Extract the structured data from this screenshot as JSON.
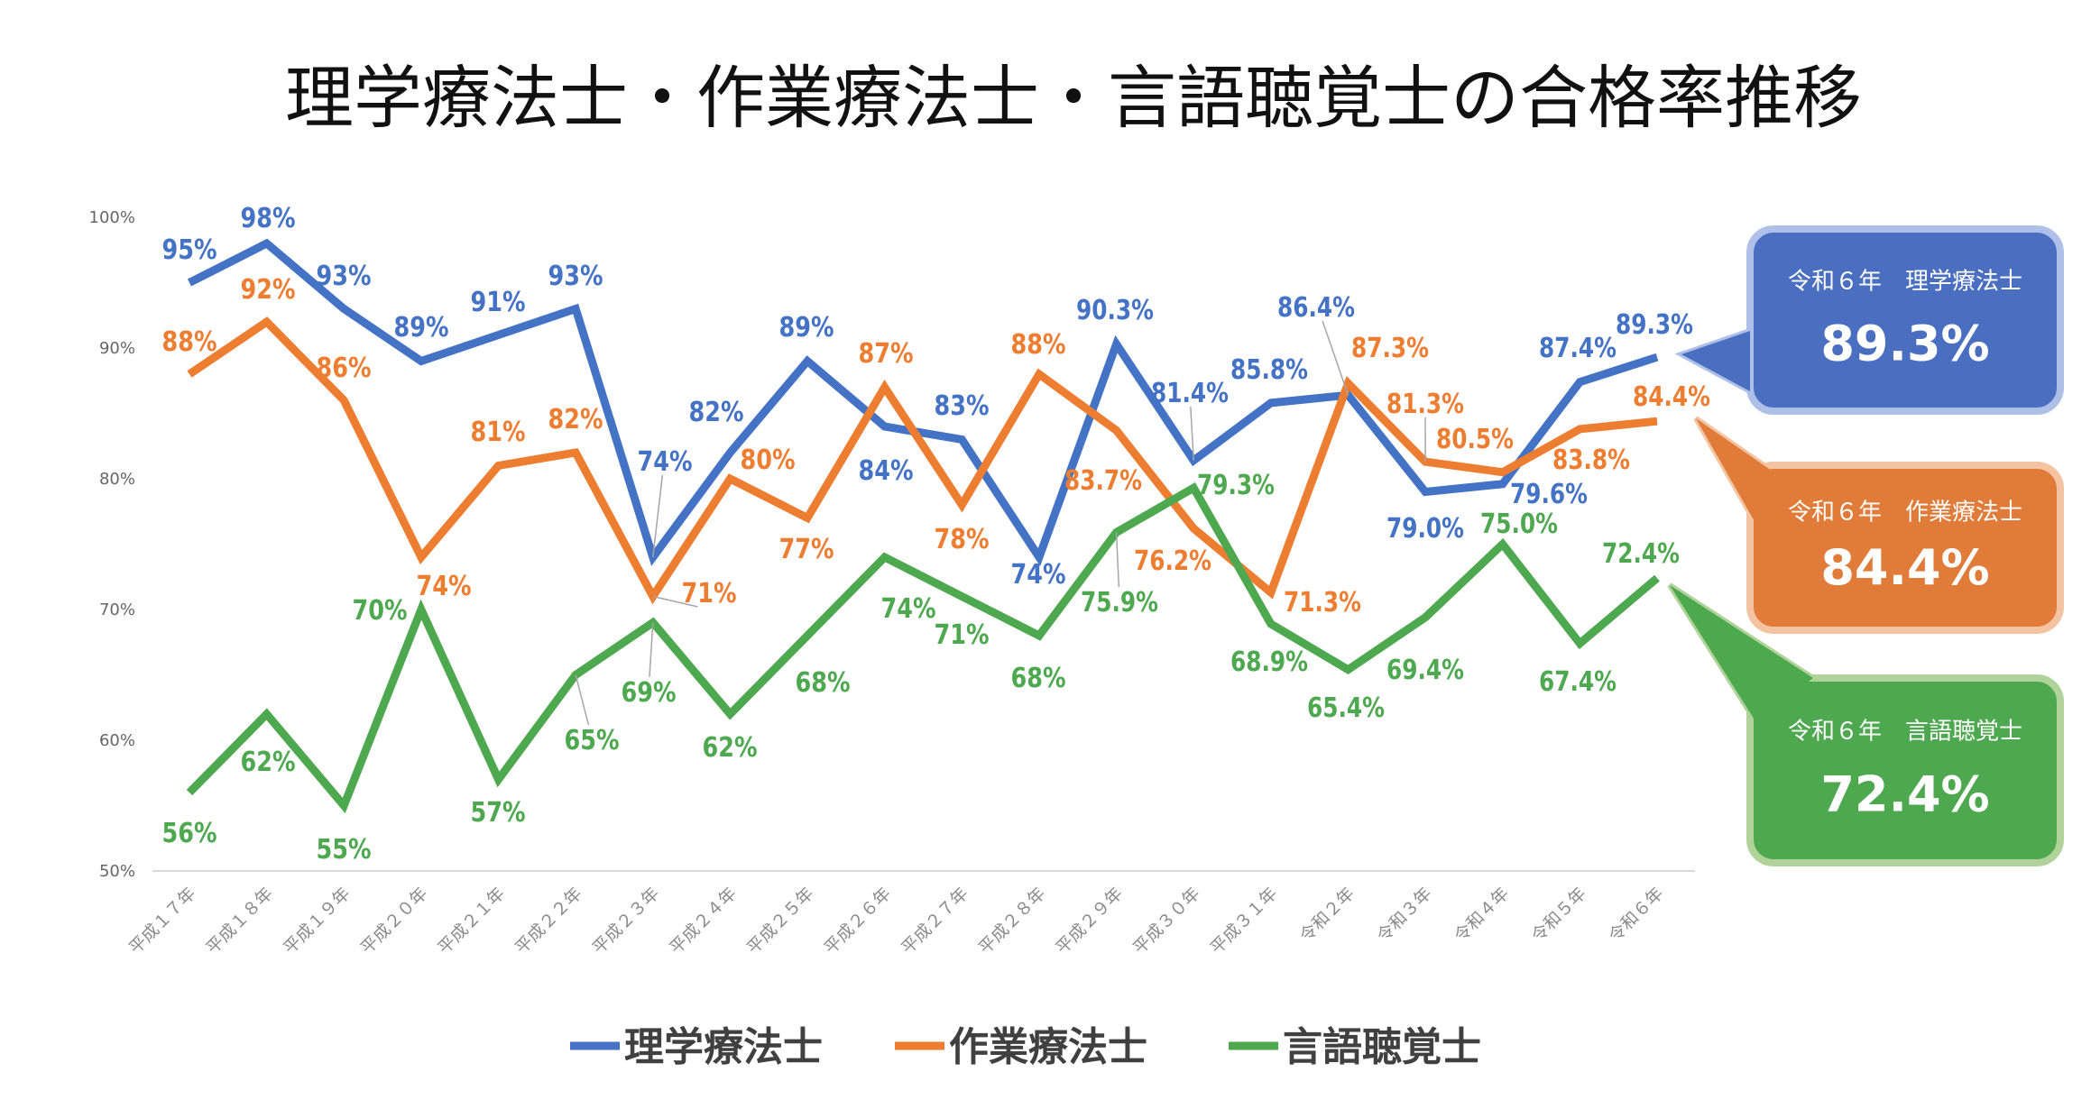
{
  "chart_data": {
    "type": "line",
    "title": "理学療法士・作業療法士・言語聴覚士の合格率推移",
    "xlabel": "",
    "ylabel": "",
    "ylim": [
      50,
      100
    ],
    "yticks": [
      "50%",
      "60%",
      "70%",
      "80%",
      "90%",
      "100%"
    ],
    "ytick_values": [
      50,
      60,
      70,
      80,
      90,
      100
    ],
    "grid": false,
    "legend_position": "bottom",
    "categories": [
      "平成１７年",
      "平成１８年",
      "平成１９年",
      "平成２０年",
      "平成２１年",
      "平成２２年",
      "平成２３年",
      "平成２４年",
      "平成２５年",
      "平成２６年",
      "平成２７年",
      "平成２８年",
      "平成２９年",
      "平成３０年",
      "平成３１年",
      "令和２年",
      "令和３年",
      "令和４年",
      "令和５年",
      "令和６年"
    ],
    "series": [
      {
        "name": "理学療法士",
        "color": "#4472C4",
        "values": [
          95,
          98,
          93,
          89,
          91,
          93,
          74,
          82,
          89,
          84,
          83,
          74,
          90.3,
          81.4,
          85.8,
          86.4,
          79.0,
          79.6,
          87.4,
          89.3
        ],
        "labels": [
          "95%",
          "98%",
          "93%",
          "89%",
          "91%",
          "93%",
          "74%",
          "82%",
          "89%",
          "84%",
          "83%",
          "74%",
          "90.3%",
          "81.4%",
          "85.8%",
          "86.4%",
          "79.0%",
          "79.6%",
          "87.4%",
          "89.3%"
        ]
      },
      {
        "name": "作業療法士",
        "color": "#ED7D31",
        "values": [
          88,
          92,
          86,
          74,
          81,
          82,
          71,
          80,
          77,
          87,
          78,
          88,
          83.7,
          76.2,
          71.3,
          87.3,
          81.3,
          80.5,
          83.8,
          84.4
        ],
        "labels": [
          "88%",
          "92%",
          "86%",
          "74%",
          "81%",
          "82%",
          "71%",
          "80%",
          "77%",
          "87%",
          "78%",
          "88%",
          "83.7%",
          "76.2%",
          "71.3%",
          "87.3%",
          "81.3%",
          "80.5%",
          "83.8%",
          "84.4%"
        ]
      },
      {
        "name": "言語聴覚士",
        "color": "#4EA84F",
        "values": [
          56,
          62,
          55,
          70,
          57,
          65,
          69,
          62,
          68,
          74,
          71,
          68,
          75.9,
          79.3,
          68.9,
          65.4,
          69.4,
          75.0,
          67.4,
          72.4
        ],
        "labels": [
          "56%",
          "62%",
          "55%",
          "70%",
          "57%",
          "65%",
          "69%",
          "62%",
          "68%",
          "74%",
          "71%",
          "68%",
          "75.9%",
          "79.3%",
          "68.9%",
          "65.4%",
          "69.4%",
          "75.0%",
          "67.4%",
          "72.4%"
        ]
      }
    ],
    "callouts": [
      {
        "heading": "令和６年　理学療法士",
        "value": "89.3%",
        "fill": "#4A6FC0",
        "border": "#AFC0E8"
      },
      {
        "heading": "令和６年　作業療法士",
        "value": "84.4%",
        "fill": "#E07B39",
        "border": "#F3C3A2"
      },
      {
        "heading": "令和６年　言語聴覚士",
        "value": "72.4%",
        "fill": "#4EA84F",
        "border": "#AFD39A"
      }
    ]
  }
}
